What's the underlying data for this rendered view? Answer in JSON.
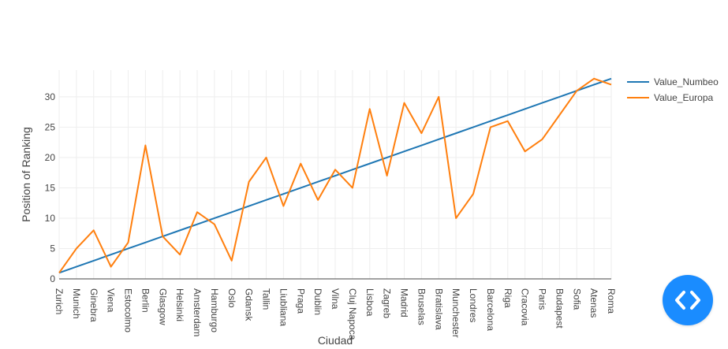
{
  "chart_data": {
    "type": "line",
    "xlabel": "Ciudad",
    "ylabel": "Position of Ranking",
    "ylim": [
      0,
      34.4
    ],
    "yticks": [
      0,
      5,
      10,
      15,
      20,
      25,
      30
    ],
    "grid": true,
    "legend_position": "top-right",
    "categories": [
      "Zurich",
      "Munich",
      "Ginebra",
      "Viena",
      "Estocolmo",
      "Berlin",
      "Glasgow",
      "Helsinki",
      "Amsterdam",
      "Hamburgo",
      "Oslo",
      "Gdansk",
      "Tallin",
      "Liubliana",
      "Praga",
      "Dublin",
      "Vilna",
      "Cluj Napoca",
      "Lisboa",
      "Zagreb",
      "Madrid",
      "Bruselas",
      "Bratislava",
      "Munchester",
      "Londres",
      "Barcelona",
      "Riga",
      "Cracovia",
      "Paris",
      "Budapest",
      "Sofia",
      "Atenas",
      "Roma"
    ],
    "series": [
      {
        "name": "Value_Numbeo",
        "color": "#1f77b4",
        "values": [
          1,
          2,
          3,
          4,
          5,
          6,
          7,
          8,
          9,
          10,
          11,
          12,
          13,
          14,
          15,
          16,
          17,
          18,
          19,
          20,
          21,
          22,
          23,
          24,
          25,
          26,
          27,
          28,
          29,
          30,
          31,
          32,
          33
        ]
      },
      {
        "name": "Value_Europa",
        "color": "#ff7f0e",
        "values": [
          1,
          5,
          8,
          2,
          6,
          22,
          7,
          4,
          11,
          9,
          3,
          16,
          20,
          12,
          19,
          13,
          18,
          15,
          28,
          17,
          29,
          24,
          30,
          10,
          14,
          25,
          26,
          21,
          23,
          27,
          31,
          33,
          32
        ]
      }
    ]
  },
  "fab": {
    "icon": "code-icon",
    "color": "#1a8cff"
  }
}
